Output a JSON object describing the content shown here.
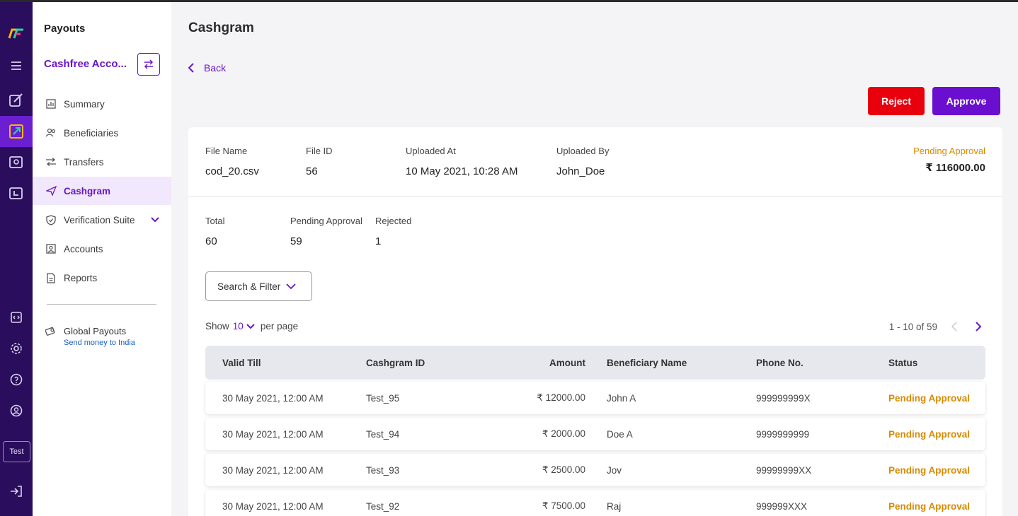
{
  "sidebar": {
    "title": "Payouts",
    "account_name": "Cashfree Acco...",
    "items": [
      {
        "label": "Summary",
        "icon": "bar-chart-icon"
      },
      {
        "label": "Beneficiaries",
        "icon": "users-icon"
      },
      {
        "label": "Transfers",
        "icon": "transfer-icon"
      },
      {
        "label": "Cashgram",
        "icon": "send-icon",
        "active": true
      },
      {
        "label": "Verification Suite",
        "icon": "shield-icon"
      },
      {
        "label": "Accounts",
        "icon": "account-card-icon"
      },
      {
        "label": "Reports",
        "icon": "document-icon"
      }
    ],
    "global_payouts": {
      "title": "Global Payouts",
      "subtitle": "Send money to India"
    }
  },
  "rail": {
    "test_label": "Test"
  },
  "header": {
    "title": "Cashgram",
    "back_label": "Back"
  },
  "actions": {
    "reject_label": "Reject",
    "approve_label": "Approve"
  },
  "file": {
    "name_label": "File Name",
    "name": "cod_20.csv",
    "id_label": "File ID",
    "id": "56",
    "uploaded_at_label": "Uploaded At",
    "uploaded_at": "10 May 2021, 10:28 AM",
    "uploaded_by_label": "Uploaded By",
    "uploaded_by": "John_Doe",
    "status": "Pending Approval",
    "total_amount": "₹ 116000.00"
  },
  "stats": {
    "total_label": "Total",
    "total": "60",
    "pending_label": "Pending Approval",
    "pending": "59",
    "rejected_label": "Rejected",
    "rejected": "1"
  },
  "filter": {
    "label": "Search & Filter"
  },
  "pagination": {
    "show_label": "Show",
    "per_page_value": "10",
    "per_page_label": "per page",
    "range": "1 - 10 of 59"
  },
  "table": {
    "headers": [
      "Valid Till",
      "Cashgram ID",
      "Amount",
      "Beneficiary Name",
      "Phone No.",
      "Status"
    ],
    "rows": [
      [
        "30 May 2021, 12:00 AM",
        "Test_95",
        "₹ 12000.00",
        "John A",
        "999999999X",
        "Pending Approval"
      ],
      [
        "30 May 2021, 12:00 AM",
        "Test_94",
        "₹ 2000.00",
        "Doe A",
        "9999999999",
        "Pending Approval"
      ],
      [
        "30 May 2021, 12:00 AM",
        "Test_93",
        "₹ 2500.00",
        "Jov",
        "99999999XX",
        "Pending Approval"
      ],
      [
        "30 May 2021, 12:00 AM",
        "Test_92",
        "₹ 7500.00",
        "Raj",
        "999999XXX",
        "Pending Approval"
      ]
    ]
  },
  "colors": {
    "brand": "#6a16c8",
    "reject": "#e8000d",
    "pending": "#d98a00",
    "rail": "#2a0d5c"
  }
}
